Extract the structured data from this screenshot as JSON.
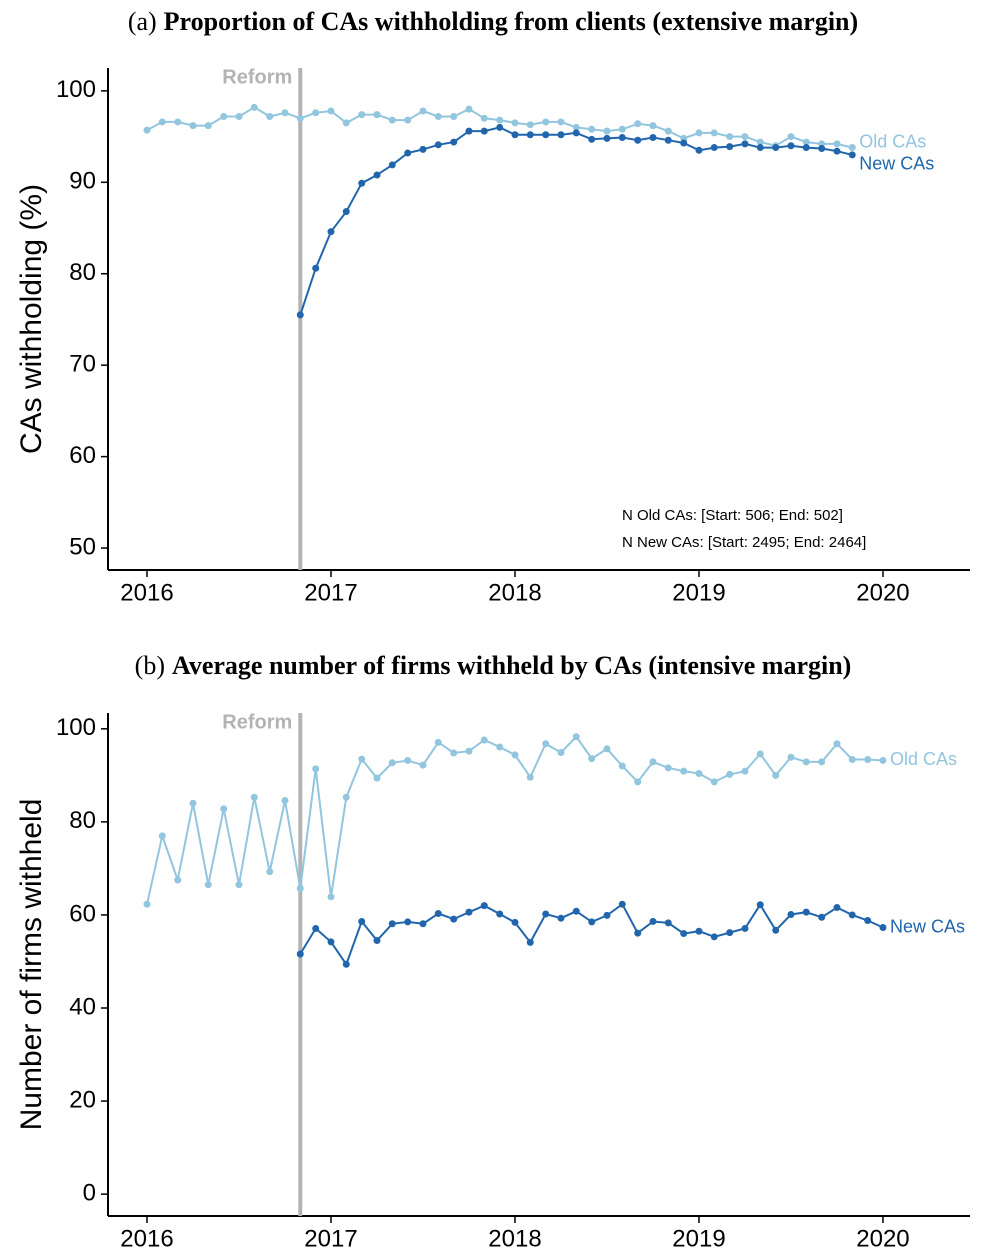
{
  "chart_data": [
    {
      "type": "line",
      "panel_label": "(a)",
      "title": "Proportion of CAs withholding from clients (extensive margin)",
      "y_label": "CAs withholding (%)",
      "x": [
        2016,
        2016.083,
        2016.167,
        2016.25,
        2016.333,
        2016.417,
        2016.5,
        2016.583,
        2016.667,
        2016.75,
        2016.833,
        2016.917,
        2017,
        2017.083,
        2017.167,
        2017.25,
        2017.333,
        2017.417,
        2017.5,
        2017.583,
        2017.667,
        2017.75,
        2017.833,
        2017.917,
        2018,
        2018.083,
        2018.167,
        2018.25,
        2018.333,
        2018.417,
        2018.5,
        2018.583,
        2018.667,
        2018.75,
        2018.833,
        2018.917,
        2019,
        2019.083,
        2019.167,
        2019.25,
        2019.333,
        2019.417,
        2019.5,
        2019.583,
        2019.667,
        2019.75,
        2019.833
      ],
      "series": [
        {
          "name": "Old CAs",
          "color": "#92c5de",
          "values": [
            95.7,
            96.6,
            96.6,
            96.2,
            96.2,
            97.2,
            97.2,
            98.2,
            97.2,
            97.6,
            97.0,
            97.6,
            97.8,
            96.5,
            97.4,
            97.4,
            96.8,
            96.8,
            97.8,
            97.2,
            97.2,
            98.0,
            97.0,
            96.8,
            96.5,
            96.3,
            96.6,
            96.6,
            96.0,
            95.8,
            95.6,
            95.8,
            96.4,
            96.2,
            95.6,
            94.8,
            95.4,
            95.4,
            95.0,
            95.0,
            94.4,
            94.0,
            95.0,
            94.4,
            94.2,
            94.2,
            93.8
          ]
        },
        {
          "name": "New CAs",
          "color": "#2166ac",
          "values": [
            null,
            null,
            null,
            null,
            null,
            null,
            null,
            null,
            null,
            null,
            75.5,
            80.6,
            84.6,
            86.8,
            89.9,
            90.8,
            91.9,
            93.2,
            93.6,
            94.1,
            94.4,
            95.6,
            95.6,
            96.0,
            95.2,
            95.2,
            95.2,
            95.2,
            95.4,
            94.7,
            94.8,
            94.9,
            94.6,
            94.9,
            94.6,
            94.3,
            93.5,
            93.8,
            93.9,
            94.2,
            93.8,
            93.8,
            94.0,
            93.8,
            93.7,
            93.4,
            93.0
          ]
        }
      ],
      "reference_line": {
        "x": 2016.833,
        "label": "Reform",
        "color": "#b3b3b3"
      },
      "annotations": [
        "N Old CAs: [Start: 506; End: 502]",
        "N New CAs: [Start: 2495; End: 2464]"
      ],
      "xlim": [
        2015.788,
        2020.473
      ],
      "xticks": [
        2016,
        2017,
        2018,
        2019,
        2020
      ],
      "ylim": [
        47.6,
        102.5
      ],
      "yticks": [
        50,
        60,
        70,
        80,
        90,
        100
      ]
    },
    {
      "type": "line",
      "panel_label": "(b)",
      "title": "Average number of firms withheld by CAs (intensive margin)",
      "y_label": "Number of firms withheld",
      "x": [
        2016,
        2016.083,
        2016.167,
        2016.25,
        2016.333,
        2016.417,
        2016.5,
        2016.583,
        2016.667,
        2016.75,
        2016.833,
        2016.917,
        2017,
        2017.083,
        2017.167,
        2017.25,
        2017.333,
        2017.417,
        2017.5,
        2017.583,
        2017.667,
        2017.75,
        2017.833,
        2017.917,
        2018,
        2018.083,
        2018.167,
        2018.25,
        2018.333,
        2018.417,
        2018.5,
        2018.583,
        2018.667,
        2018.75,
        2018.833,
        2018.917,
        2019,
        2019.083,
        2019.167,
        2019.25,
        2019.333,
        2019.417,
        2019.5,
        2019.583,
        2019.667,
        2019.75,
        2019.833,
        2019.917,
        2020
      ],
      "series": [
        {
          "name": "Old CAs",
          "color": "#92c5de",
          "values": [
            62.3,
            77,
            67.5,
            84,
            66.5,
            82.8,
            66.5,
            85.3,
            69.3,
            84.6,
            65.7,
            91.4,
            63.9,
            85.3,
            93.5,
            89.4,
            92.7,
            93.2,
            92.2,
            97.1,
            94.8,
            95.2,
            97.6,
            96.1,
            94.4,
            89.6,
            96.8,
            94.9,
            98.3,
            93.6,
            95.7,
            92.0,
            88.6,
            92.9,
            91.6,
            90.9,
            90.4,
            88.6,
            90.2,
            90.9,
            94.6,
            90.0,
            93.9,
            92.9,
            92.9,
            96.8,
            93.4,
            93.4,
            93.2
          ]
        },
        {
          "name": "New CAs",
          "color": "#2166ac",
          "values": [
            null,
            null,
            null,
            null,
            null,
            null,
            null,
            null,
            null,
            null,
            51.6,
            57.1,
            54.2,
            49.4,
            58.6,
            54.5,
            58.1,
            58.5,
            58.1,
            60.3,
            59.1,
            60.6,
            62.0,
            60.2,
            58.4,
            54.1,
            60.2,
            59.3,
            60.8,
            58.5,
            59.9,
            62.3,
            56.1,
            58.6,
            58.3,
            56.0,
            56.5,
            55.3,
            56.2,
            57.1,
            62.2,
            56.7,
            60.1,
            60.6,
            59.5,
            61.6,
            60.0,
            58.8,
            57.3
          ]
        }
      ],
      "reference_line": {
        "x": 2016.833,
        "label": "Reform",
        "color": "#b3b3b3"
      },
      "xlim": [
        2015.788,
        2020.473
      ],
      "xticks": [
        2016,
        2017,
        2018,
        2019,
        2020
      ],
      "ylim": [
        -4.7,
        103.4
      ],
      "yticks": [
        0,
        20,
        40,
        60,
        80,
        100
      ]
    }
  ]
}
